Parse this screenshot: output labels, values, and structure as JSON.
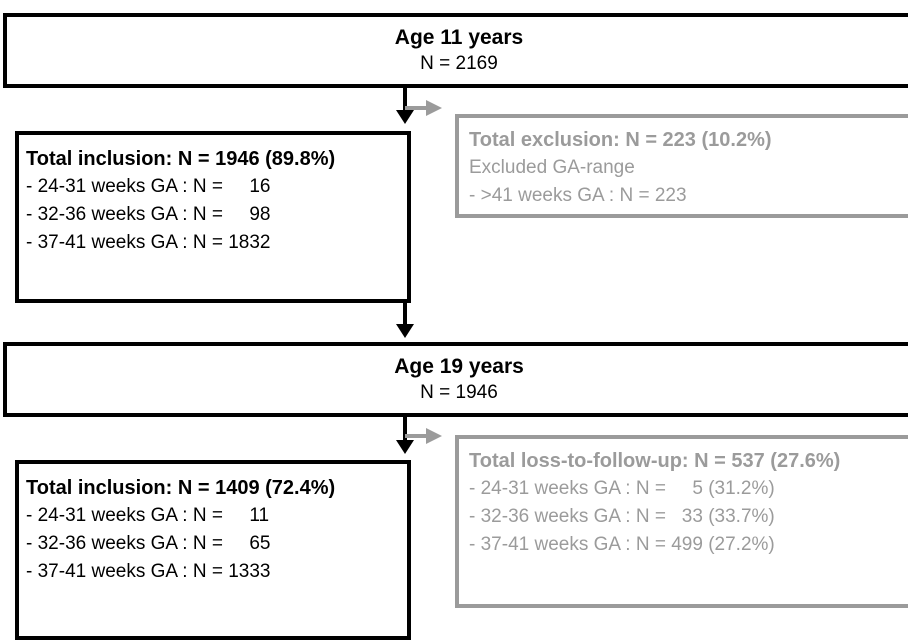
{
  "stage1": {
    "title": "Age 11 years",
    "count": "N = 2169"
  },
  "inclusion1": {
    "heading": "Total inclusion: N = 1946 (89.8%)",
    "lines": [
      "- 24-31 weeks GA : N =     16",
      "- 32-36 weeks GA : N =     98",
      "- 37-41 weeks GA : N = 1832"
    ]
  },
  "exclusion1": {
    "heading": "Total exclusion: N = 223 (10.2%)",
    "subheading": "Excluded GA-range",
    "lines": [
      "- >41 weeks GA : N = 223"
    ]
  },
  "stage2": {
    "title": "Age 19 years",
    "count": "N = 1946"
  },
  "inclusion2": {
    "heading": "Total inclusion: N = 1409 (72.4%)",
    "lines": [
      "- 24-31 weeks GA : N =     11",
      "- 32-36 weeks GA : N =     65",
      "- 37-41 weeks GA : N = 1333"
    ]
  },
  "loss2": {
    "heading": "Total loss-to-follow-up: N = 537 (27.6%)",
    "lines": [
      "- 24-31 weeks GA : N =     5 (31.2%)",
      "- 32-36 weeks GA : N =   33 (33.7%)",
      "- 37-41 weeks GA : N = 499 (27.2%)"
    ]
  },
  "colors": {
    "main": "#000000",
    "excluded": "#9b9b9b"
  }
}
